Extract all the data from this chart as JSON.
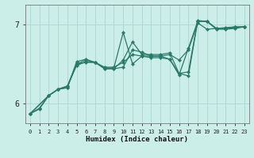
{
  "xlabel": "Humidex (Indice chaleur)",
  "ylabel": "",
  "background_color": "#cceee8",
  "grid_color": "#b0d8d4",
  "line_color": "#2a7a6a",
  "xlim": [
    -0.5,
    23.5
  ],
  "ylim": [
    5.75,
    7.25
  ],
  "yticks": [
    6,
    7
  ],
  "xticks": [
    0,
    1,
    2,
    3,
    4,
    5,
    6,
    7,
    8,
    9,
    10,
    11,
    12,
    13,
    14,
    15,
    16,
    17,
    18,
    19,
    20,
    21,
    22,
    23
  ],
  "lines": [
    {
      "x": [
        0,
        1,
        2,
        3,
        4,
        5,
        6,
        7,
        8,
        9,
        10,
        11,
        12,
        13,
        14,
        15,
        16,
        17,
        18,
        19,
        20,
        21,
        22,
        23
      ],
      "y": [
        5.87,
        5.93,
        6.1,
        6.18,
        6.22,
        6.5,
        6.52,
        6.52,
        6.46,
        6.46,
        6.52,
        6.62,
        6.6,
        6.6,
        6.6,
        6.62,
        6.55,
        6.68,
        7.02,
        6.94,
        6.95,
        6.96,
        6.97,
        6.97
      ]
    },
    {
      "x": [
        0,
        1,
        2,
        3,
        4,
        5,
        6,
        7,
        8,
        9,
        10,
        11,
        12,
        13,
        14,
        15,
        16,
        17,
        18,
        19,
        20,
        21,
        22,
        23
      ],
      "y": [
        5.87,
        5.94,
        6.1,
        6.18,
        6.2,
        6.53,
        6.56,
        6.52,
        6.45,
        6.45,
        6.9,
        6.5,
        6.6,
        6.58,
        6.58,
        6.56,
        6.38,
        6.4,
        7.05,
        7.04,
        6.95,
        6.95,
        6.96,
        6.97
      ]
    },
    {
      "x": [
        0,
        2,
        3,
        4,
        5,
        6,
        7,
        8,
        9,
        10,
        11,
        12,
        13,
        14,
        15,
        16,
        17,
        18,
        19,
        20,
        21,
        22,
        23
      ],
      "y": [
        5.87,
        6.1,
        6.18,
        6.2,
        6.5,
        6.55,
        6.52,
        6.44,
        6.44,
        6.55,
        6.78,
        6.62,
        6.62,
        6.62,
        6.64,
        6.38,
        6.35,
        7.04,
        7.04,
        6.94,
        6.94,
        6.95,
        6.97
      ]
    },
    {
      "x": [
        0,
        2,
        3,
        4,
        5,
        6,
        7,
        8,
        9,
        10,
        11,
        12,
        13,
        14,
        15,
        16,
        17,
        18,
        19,
        20,
        21,
        22,
        23
      ],
      "y": [
        5.87,
        6.1,
        6.18,
        6.22,
        6.48,
        6.53,
        6.52,
        6.44,
        6.44,
        6.46,
        6.68,
        6.65,
        6.6,
        6.6,
        6.56,
        6.36,
        6.7,
        7.04,
        7.04,
        6.95,
        6.95,
        6.97,
        6.97
      ]
    }
  ]
}
